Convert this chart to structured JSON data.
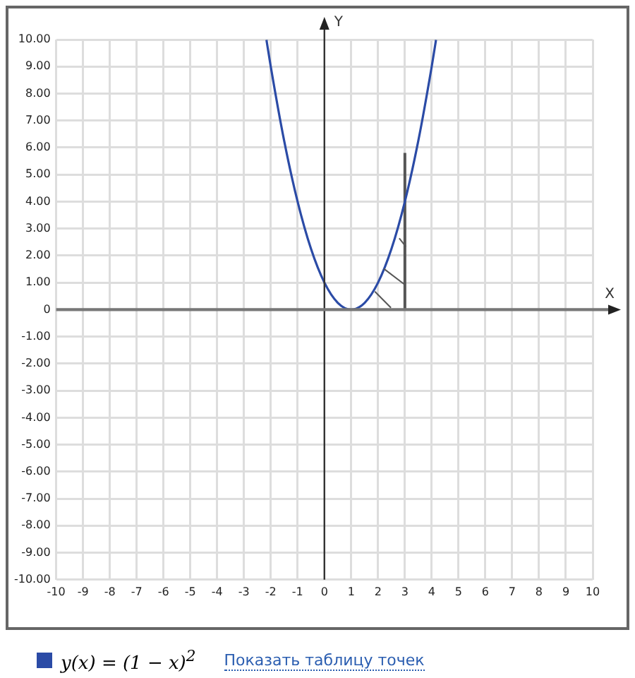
{
  "chart_data": {
    "type": "line",
    "xlabel": "X",
    "ylabel": "Y",
    "xlim": [
      -10,
      10
    ],
    "xticks": [
      -10,
      -9,
      -8,
      -7,
      -6,
      -5,
      -4,
      -3,
      -2,
      -1,
      0,
      1,
      2,
      3,
      4,
      5,
      6,
      7,
      8,
      9,
      10
    ],
    "ylim": [
      -10,
      10
    ],
    "yticks": [
      {
        "value": -10,
        "label": "-10.00"
      },
      {
        "value": -9,
        "label": "-9.00"
      },
      {
        "value": -8,
        "label": "-8.00"
      },
      {
        "value": -7,
        "label": "-7.00"
      },
      {
        "value": -6,
        "label": "-6.00"
      },
      {
        "value": -5,
        "label": "-5.00"
      },
      {
        "value": -4,
        "label": "-4.00"
      },
      {
        "value": -3,
        "label": "-3.00"
      },
      {
        "value": -2,
        "label": "-2.00"
      },
      {
        "value": -1,
        "label": "-1.00"
      },
      {
        "value": 0,
        "label": "0"
      },
      {
        "value": 1,
        "label": "1.00"
      },
      {
        "value": 2,
        "label": "2.00"
      },
      {
        "value": 3,
        "label": "3.00"
      },
      {
        "value": 4,
        "label": "4.00"
      },
      {
        "value": 5,
        "label": "5.00"
      },
      {
        "value": 6,
        "label": "6.00"
      },
      {
        "value": 7,
        "label": "7.00"
      },
      {
        "value": 8,
        "label": "8.00"
      },
      {
        "value": 9,
        "label": "9.00"
      },
      {
        "value": 10,
        "label": "10.00"
      }
    ],
    "grid": true,
    "legend": "bottom",
    "marker": "none",
    "series": [
      {
        "name": "y(x) = (1 − x)$^{2}$",
        "color": "#2b4ba6",
        "x": [
          -2.16,
          -2,
          -1.5,
          -1,
          -0.5,
          0,
          0.5,
          1,
          1.5,
          2,
          2.5,
          3,
          3.5,
          4,
          4.16
        ],
        "values": [
          9.99,
          9,
          6.25,
          4,
          2.25,
          1,
          0.25,
          0,
          0.25,
          1,
          2.25,
          4,
          6.25,
          9,
          9.99
        ]
      },
      {
        "color": "#555555",
        "x": [
          3,
          3
        ],
        "values": [
          0,
          5.8
        ]
      }
    ],
    "annotations": [
      "Показать таблицу точек"
    ]
  }
}
